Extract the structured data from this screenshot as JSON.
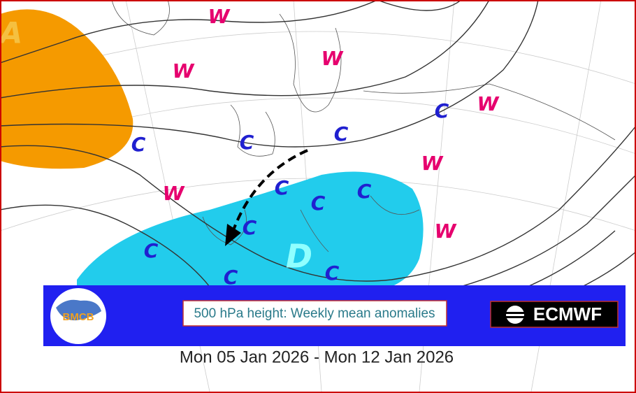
{
  "map": {
    "labels": [
      "A",
      "W",
      "W",
      "W",
      "W",
      "W",
      "W",
      "W",
      "C",
      "C",
      "C",
      "C",
      "C",
      "C",
      "C",
      "C",
      "C",
      "C",
      "C",
      "D"
    ]
  },
  "banner": {
    "logo": "BMCB",
    "title": "500 hPa height: Weekly mean anomalies",
    "brand": "ECMWF"
  },
  "period": "Mon 05 Jan 2026 - Mon 12 Jan 2026"
}
